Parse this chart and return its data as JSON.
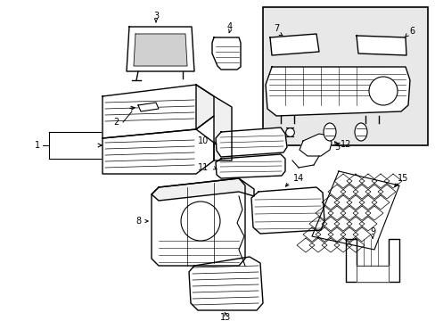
{
  "bg_color": "#ffffff",
  "line_color": "#000000",
  "fig_width": 4.89,
  "fig_height": 3.6,
  "dpi": 100,
  "inset_bg": "#e8e8e8"
}
